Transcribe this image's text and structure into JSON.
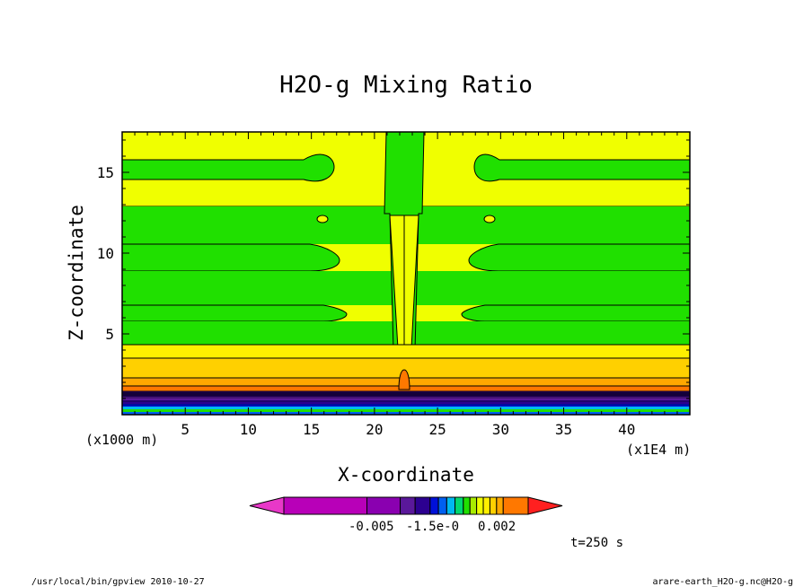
{
  "chart_data": {
    "type": "heatmap",
    "subtype": "filled-contour",
    "title": "H2O-g Mixing Ratio",
    "xlabel": "X-coordinate",
    "ylabel": "Z-coordinate",
    "x_unit_label": "(x1E4 m)",
    "y_unit_label": "(x1000 m)",
    "xlim": [
      0,
      45
    ],
    "ylim": [
      0,
      17.5
    ],
    "x_ticks": [
      5,
      10,
      15,
      20,
      25,
      30,
      35,
      40
    ],
    "y_ticks": [
      5,
      10,
      15
    ],
    "colorbar_labels": [
      "-0.005",
      "-1.5e-0",
      "0.002"
    ],
    "colorbar_colors": [
      "#e838c8",
      "#b800b8",
      "#8a00b0",
      "#5a189a",
      "#2c0090",
      "#0010d8",
      "#0060f0",
      "#00b8f0",
      "#00d870",
      "#20e000",
      "#a8ec00",
      "#f0ff00",
      "#fff000",
      "#ffd000",
      "#ffa800",
      "#ff7800",
      "#ff2020"
    ],
    "time_label": "t=250 s",
    "fill_colors": {
      "upper_band_a": "#f0ff00",
      "upper_band_b": "#20e000",
      "lower_1": "#fff000",
      "lower_2": "#ffd000",
      "lower_3": "#ffa800",
      "lower_4": "#ff7800",
      "purple": "#2c0090",
      "dark": "#0010d8"
    }
  },
  "footer": {
    "left": "/usr/local/bin/gpview  2010-10-27",
    "right": "arare-earth_H2O-g.nc@H2O-g"
  }
}
